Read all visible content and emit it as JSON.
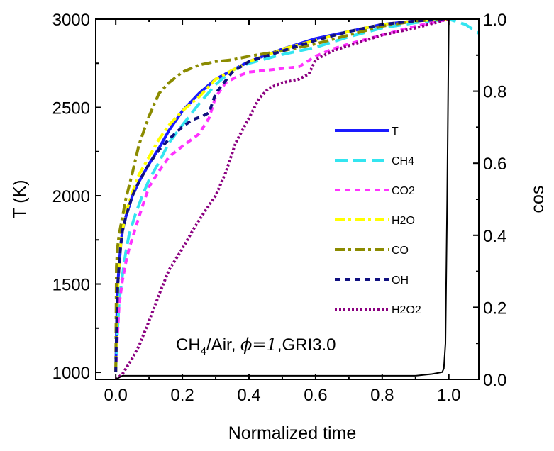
{
  "chart_data": {
    "type": "line",
    "xlabel": "Normalized time",
    "ylabel": "T (K)",
    "y2label": "cos",
    "xlim": [
      -0.06,
      1.09
    ],
    "ylim": [
      960,
      3000
    ],
    "y2lim": [
      0.0,
      1.0
    ],
    "xticks": [
      0.0,
      0.2,
      0.4,
      0.6,
      0.8,
      1.0
    ],
    "xtick_labels": [
      "0.0",
      "0.2",
      "0.4",
      "0.6",
      "0.8",
      "1.0"
    ],
    "yticks": [
      1000,
      1500,
      2000,
      2500,
      3000
    ],
    "ytick_labels": [
      "1000",
      "1500",
      "2000",
      "2500",
      "3000"
    ],
    "y2ticks": [
      0.0,
      0.2,
      0.4,
      0.6,
      0.8,
      1.0
    ],
    "y2tick_labels": [
      "0.0",
      "0.2",
      "0.4",
      "0.6",
      "0.8",
      "1.0"
    ],
    "legend_position": "right-middle",
    "annotation": {
      "species": "CH",
      "subscript": "4",
      "rest": "/Air, ",
      "phi": "ϕ=1",
      "mech": ",GRI3.0"
    },
    "series": [
      {
        "name": "T",
        "axis": "left",
        "color": "#1a1aff",
        "dash": "solid",
        "width": 4,
        "x": [
          0.0,
          0.003,
          0.006,
          0.01,
          0.015,
          0.02,
          0.03,
          0.04,
          0.05,
          0.07,
          0.1,
          0.13,
          0.16,
          0.2,
          0.25,
          0.3,
          0.35,
          0.4,
          0.5,
          0.6,
          0.7,
          0.8,
          0.9,
          1.0
        ],
        "y": [
          1000,
          1300,
          1500,
          1600,
          1720,
          1800,
          1880,
          1940,
          2000,
          2080,
          2180,
          2270,
          2370,
          2480,
          2580,
          2660,
          2710,
          2760,
          2830,
          2890,
          2930,
          2970,
          2990,
          3000
        ]
      },
      {
        "name": "CH4",
        "axis": "left",
        "color": "#33e5f0",
        "dash": "long",
        "width": 4,
        "x": [
          0.0,
          0.005,
          0.01,
          0.02,
          0.03,
          0.04,
          0.06,
          0.08,
          0.1,
          0.13,
          0.16,
          0.2,
          0.25,
          0.3,
          0.35,
          0.4,
          0.5,
          0.6,
          0.7,
          0.8,
          0.9,
          1.0,
          1.05,
          1.09
        ],
        "y": [
          1000,
          1220,
          1400,
          1550,
          1680,
          1780,
          1900,
          2000,
          2090,
          2190,
          2300,
          2400,
          2520,
          2630,
          2710,
          2750,
          2800,
          2840,
          2900,
          2950,
          2980,
          3000,
          2970,
          2920
        ]
      },
      {
        "name": "CO2",
        "axis": "left",
        "color": "#ff33ff",
        "dash": "short",
        "width": 4,
        "x": [
          0.0,
          0.005,
          0.01,
          0.02,
          0.03,
          0.04,
          0.06,
          0.08,
          0.1,
          0.13,
          0.16,
          0.2,
          0.25,
          0.28,
          0.3,
          0.33,
          0.37,
          0.4,
          0.45,
          0.5,
          0.55,
          0.6,
          0.65,
          0.7,
          0.8,
          0.9,
          1.0
        ],
        "y": [
          1000,
          1200,
          1380,
          1520,
          1620,
          1700,
          1820,
          1940,
          2050,
          2140,
          2220,
          2280,
          2350,
          2440,
          2560,
          2640,
          2680,
          2700,
          2710,
          2720,
          2730,
          2790,
          2830,
          2860,
          2910,
          2960,
          3000
        ]
      },
      {
        "name": "H2O",
        "axis": "left",
        "color": "#ffff00",
        "dash": "dashdot",
        "width": 4,
        "x": [
          0.0,
          0.003,
          0.006,
          0.01,
          0.015,
          0.02,
          0.03,
          0.05,
          0.07,
          0.1,
          0.13,
          0.16,
          0.2,
          0.25,
          0.28,
          0.3,
          0.35,
          0.4,
          0.5,
          0.6,
          0.7,
          0.8,
          0.9,
          1.0
        ],
        "y": [
          1000,
          1300,
          1480,
          1600,
          1720,
          1800,
          1900,
          2020,
          2120,
          2220,
          2320,
          2400,
          2480,
          2560,
          2620,
          2660,
          2710,
          2760,
          2830,
          2880,
          2930,
          2970,
          2990,
          3000
        ]
      },
      {
        "name": "CO",
        "axis": "left",
        "color": "#8b8b00",
        "dash": "dashdot",
        "width": 4,
        "x": [
          0.0,
          0.002,
          0.005,
          0.01,
          0.02,
          0.03,
          0.05,
          0.07,
          0.1,
          0.13,
          0.16,
          0.2,
          0.25,
          0.3,
          0.35,
          0.4,
          0.5,
          0.6,
          0.7,
          0.8,
          0.9,
          1.0
        ],
        "y": [
          1000,
          1600,
          1700,
          1780,
          1880,
          1980,
          2130,
          2290,
          2450,
          2580,
          2640,
          2700,
          2740,
          2760,
          2770,
          2790,
          2820,
          2860,
          2910,
          2960,
          2990,
          3000
        ]
      },
      {
        "name": "OH",
        "axis": "left",
        "color": "#101080",
        "dash": "short",
        "width": 4,
        "x": [
          0.0,
          0.003,
          0.006,
          0.01,
          0.015,
          0.02,
          0.03,
          0.05,
          0.07,
          0.1,
          0.13,
          0.16,
          0.2,
          0.23,
          0.26,
          0.28,
          0.3,
          0.35,
          0.4,
          0.5,
          0.6,
          0.7,
          0.8,
          0.9,
          1.0
        ],
        "y": [
          1000,
          1300,
          1500,
          1600,
          1720,
          1800,
          1880,
          2000,
          2080,
          2180,
          2260,
          2320,
          2390,
          2430,
          2450,
          2470,
          2580,
          2700,
          2760,
          2820,
          2880,
          2930,
          2970,
          2990,
          3000
        ]
      },
      {
        "name": "H2O2",
        "axis": "left",
        "color": "#8b0080",
        "dash": "dotted",
        "width": 4,
        "x": [
          0.0,
          0.01,
          0.02,
          0.03,
          0.05,
          0.07,
          0.1,
          0.13,
          0.16,
          0.2,
          0.23,
          0.26,
          0.3,
          0.33,
          0.36,
          0.4,
          0.43,
          0.46,
          0.5,
          0.55,
          0.58,
          0.6,
          0.65,
          0.7,
          0.8,
          0.9,
          0.95,
          0.98,
          0.99,
          1.0
        ],
        "y": [
          960,
          975,
          990,
          1020,
          1080,
          1150,
          1290,
          1440,
          1580,
          1700,
          1800,
          1890,
          2000,
          2130,
          2300,
          2440,
          2550,
          2610,
          2640,
          2660,
          2690,
          2770,
          2820,
          2850,
          2910,
          2950,
          2975,
          2990,
          3000,
          3000
        ]
      },
      {
        "name": "cos",
        "axis": "right",
        "color": "#000000",
        "dash": "solid",
        "width": 2,
        "x": [
          0.0,
          0.02,
          0.05,
          0.1,
          0.2,
          0.3,
          0.4,
          0.5,
          0.6,
          0.7,
          0.8,
          0.9,
          0.95,
          0.98,
          0.985,
          0.99,
          0.995,
          1.0
        ],
        "y": [
          0.0,
          0.01,
          0.01,
          0.01,
          0.01,
          0.01,
          0.01,
          0.01,
          0.01,
          0.01,
          0.01,
          0.01,
          0.015,
          0.02,
          0.03,
          0.1,
          0.5,
          1.0
        ]
      }
    ]
  }
}
